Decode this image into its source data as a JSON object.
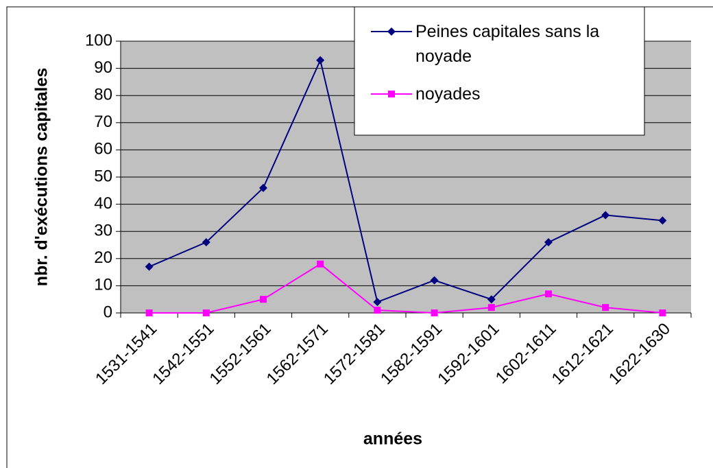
{
  "chart_data": {
    "type": "line",
    "xlabel": "années",
    "ylabel": "nbr. d'exécutions capitales",
    "categories": [
      "1531-1541",
      "1542-1551",
      "1552-1561",
      "1562-1571",
      "1572-1581",
      "1582-1591",
      "1592-1601",
      "1602-1611",
      "1612-1621",
      "1622-1630"
    ],
    "series": [
      {
        "name": "Peines capitales sans la noyade",
        "color": "#000080",
        "marker": "diamond",
        "values": [
          17,
          26,
          46,
          93,
          4,
          12,
          5,
          26,
          36,
          34
        ]
      },
      {
        "name": "noyades",
        "color": "#ff00ff",
        "marker": "square",
        "values": [
          0,
          0,
          5,
          18,
          1,
          0,
          2,
          7,
          2,
          0
        ]
      }
    ],
    "ylim": [
      0,
      100
    ],
    "yticks": [
      0,
      10,
      20,
      30,
      40,
      50,
      60,
      70,
      80,
      90,
      100
    ],
    "grid": true,
    "legend": "upper right"
  }
}
